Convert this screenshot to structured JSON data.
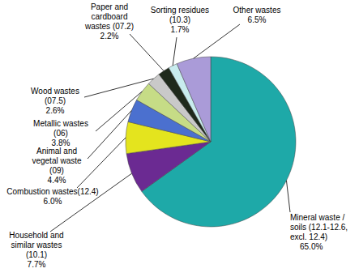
{
  "chart_data": {
    "type": "pie",
    "categories": [
      "Mineral waste / soils (12.1-12.6, excl. 12.4)",
      "Household and similar wastes (10.1)",
      "Combustion wastes(12.4)",
      "Animal and vegetal waste (09)",
      "Metallic wastes (06)",
      "Wood wastes (07.5)",
      "Paper and cardboard wastes (07.2)",
      "Sorting residues (10.3)",
      "Other wastes"
    ],
    "values": [
      65.0,
      7.7,
      6.0,
      4.4,
      3.8,
      2.6,
      2.2,
      1.7,
      6.5
    ],
    "value_labels": [
      "65.0%",
      "7.7%",
      "6.0%",
      "4.4%",
      "3.8%",
      "2.6%",
      "2.2%",
      "1.7%",
      "6.5%"
    ],
    "colors": [
      "#1ea9a8",
      "#6b2a92",
      "#e4e41e",
      "#4b70cf",
      "#c6dc86",
      "#c9c9c9",
      "#1f2a1c",
      "#c8ecee",
      "#aa9bd8"
    ],
    "data_labels": true
  }
}
